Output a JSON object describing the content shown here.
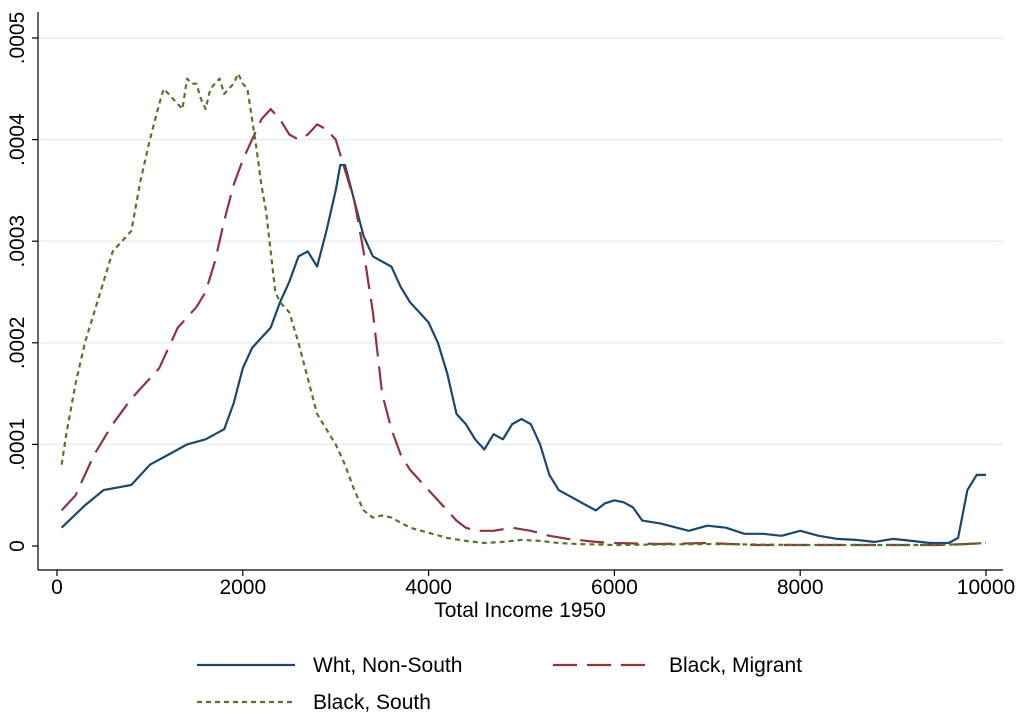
{
  "chart_data": {
    "type": "line",
    "xlabel": "Total Income 1950",
    "ylabel": "",
    "xlim": [
      0,
      10000
    ],
    "ylim": [
      0,
      0.0005
    ],
    "x_ticks": [
      0,
      2000,
      4000,
      6000,
      8000,
      10000
    ],
    "x_tick_labels": [
      "0",
      "2000",
      "4000",
      "6000",
      "8000",
      "10000"
    ],
    "y_ticks": [
      0,
      0.0001,
      0.0002,
      0.0003,
      0.0004,
      0.0005
    ],
    "y_tick_labels": [
      "0",
      ".0001",
      ".0002",
      ".0003",
      ".0004",
      ".0005"
    ],
    "grid": "horizontal",
    "legend_position": "bottom",
    "series": [
      {
        "name": "Wht, Non-South",
        "color": "#1a476f",
        "dash": "solid",
        "points": [
          [
            50,
            1.8e-05
          ],
          [
            300,
            4e-05
          ],
          [
            500,
            5.5e-05
          ],
          [
            800,
            6e-05
          ],
          [
            1000,
            8e-05
          ],
          [
            1200,
            9e-05
          ],
          [
            1400,
            0.0001
          ],
          [
            1600,
            0.000105
          ],
          [
            1800,
            0.000115
          ],
          [
            1900,
            0.00014
          ],
          [
            2000,
            0.000175
          ],
          [
            2100,
            0.000195
          ],
          [
            2200,
            0.000205
          ],
          [
            2300,
            0.000215
          ],
          [
            2400,
            0.00024
          ],
          [
            2500,
            0.00026
          ],
          [
            2600,
            0.000285
          ],
          [
            2700,
            0.00029
          ],
          [
            2800,
            0.000275
          ],
          [
            2900,
            0.00031
          ],
          [
            3000,
            0.00035
          ],
          [
            3050,
            0.000375
          ],
          [
            3100,
            0.000375
          ],
          [
            3200,
            0.00034
          ],
          [
            3300,
            0.000305
          ],
          [
            3400,
            0.000285
          ],
          [
            3500,
            0.00028
          ],
          [
            3600,
            0.000275
          ],
          [
            3700,
            0.000255
          ],
          [
            3800,
            0.00024
          ],
          [
            3900,
            0.00023
          ],
          [
            4000,
            0.00022
          ],
          [
            4100,
            0.0002
          ],
          [
            4200,
            0.00017
          ],
          [
            4300,
            0.00013
          ],
          [
            4400,
            0.00012
          ],
          [
            4500,
            0.000105
          ],
          [
            4600,
            9.5e-05
          ],
          [
            4700,
            0.00011
          ],
          [
            4800,
            0.000105
          ],
          [
            4900,
            0.00012
          ],
          [
            5000,
            0.000125
          ],
          [
            5100,
            0.00012
          ],
          [
            5200,
            0.0001
          ],
          [
            5300,
            7e-05
          ],
          [
            5400,
            5.5e-05
          ],
          [
            5500,
            5e-05
          ],
          [
            5700,
            4e-05
          ],
          [
            5800,
            3.5e-05
          ],
          [
            5900,
            4.2e-05
          ],
          [
            6000,
            4.5e-05
          ],
          [
            6100,
            4.3e-05
          ],
          [
            6200,
            3.8e-05
          ],
          [
            6300,
            2.5e-05
          ],
          [
            6500,
            2.2e-05
          ],
          [
            6800,
            1.5e-05
          ],
          [
            7000,
            2e-05
          ],
          [
            7200,
            1.8e-05
          ],
          [
            7400,
            1.2e-05
          ],
          [
            7600,
            1.2e-05
          ],
          [
            7800,
            1e-05
          ],
          [
            8000,
            1.5e-05
          ],
          [
            8200,
            1e-05
          ],
          [
            8400,
            7e-06
          ],
          [
            8600,
            6e-06
          ],
          [
            8800,
            4e-06
          ],
          [
            9000,
            7e-06
          ],
          [
            9200,
            5e-06
          ],
          [
            9400,
            3e-06
          ],
          [
            9600,
            3e-06
          ],
          [
            9700,
            8e-06
          ],
          [
            9800,
            5.5e-05
          ],
          [
            9900,
            7e-05
          ],
          [
            10000,
            7e-05
          ]
        ]
      },
      {
        "name": "Black, Migrant",
        "color": "#90353b",
        "dash": "long-dash",
        "points": [
          [
            50,
            3.5e-05
          ],
          [
            200,
            5e-05
          ],
          [
            400,
            9e-05
          ],
          [
            600,
            0.00012
          ],
          [
            800,
            0.000145
          ],
          [
            1000,
            0.000165
          ],
          [
            1100,
            0.000175
          ],
          [
            1200,
            0.000195
          ],
          [
            1300,
            0.000215
          ],
          [
            1400,
            0.000225
          ],
          [
            1500,
            0.000235
          ],
          [
            1600,
            0.00025
          ],
          [
            1700,
            0.00028
          ],
          [
            1800,
            0.00032
          ],
          [
            1900,
            0.000355
          ],
          [
            2000,
            0.00038
          ],
          [
            2100,
            0.0004
          ],
          [
            2200,
            0.00042
          ],
          [
            2300,
            0.00043
          ],
          [
            2400,
            0.00042
          ],
          [
            2500,
            0.000405
          ],
          [
            2600,
            0.0004
          ],
          [
            2700,
            0.000405
          ],
          [
            2800,
            0.000415
          ],
          [
            2900,
            0.00041
          ],
          [
            3000,
            0.0004
          ],
          [
            3100,
            0.00037
          ],
          [
            3200,
            0.00034
          ],
          [
            3300,
            0.00029
          ],
          [
            3400,
            0.00023
          ],
          [
            3500,
            0.00015
          ],
          [
            3600,
            0.000115
          ],
          [
            3700,
            9e-05
          ],
          [
            3800,
            7.5e-05
          ],
          [
            3900,
            6.5e-05
          ],
          [
            4000,
            5.5e-05
          ],
          [
            4100,
            4.5e-05
          ],
          [
            4200,
            3.5e-05
          ],
          [
            4300,
            2.5e-05
          ],
          [
            4400,
            1.8e-05
          ],
          [
            4500,
            1.5e-05
          ],
          [
            4700,
            1.5e-05
          ],
          [
            4900,
            1.8e-05
          ],
          [
            5100,
            1.5e-05
          ],
          [
            5300,
            1e-05
          ],
          [
            5500,
            7e-06
          ],
          [
            5800,
            4e-06
          ],
          [
            6000,
            3e-06
          ],
          [
            6500,
            2e-06
          ],
          [
            7000,
            3e-06
          ],
          [
            7500,
            1e-06
          ],
          [
            8000,
            1e-06
          ],
          [
            9000,
            1e-06
          ],
          [
            9500,
            1e-06
          ],
          [
            9800,
            2e-06
          ],
          [
            10000,
            3e-06
          ]
        ]
      },
      {
        "name": "Black, South",
        "color": "#55752f",
        "dash": "short-dash",
        "points": [
          [
            50,
            8e-05
          ],
          [
            100,
            0.00011
          ],
          [
            200,
            0.00016
          ],
          [
            300,
            0.0002
          ],
          [
            400,
            0.00023
          ],
          [
            500,
            0.00026
          ],
          [
            600,
            0.00029
          ],
          [
            700,
            0.0003
          ],
          [
            800,
            0.00031
          ],
          [
            900,
            0.00036
          ],
          [
            1000,
            0.0004
          ],
          [
            1100,
            0.000435
          ],
          [
            1150,
            0.00045
          ],
          [
            1200,
            0.000445
          ],
          [
            1300,
            0.000435
          ],
          [
            1350,
            0.00043
          ],
          [
            1400,
            0.00046
          ],
          [
            1450,
            0.000455
          ],
          [
            1500,
            0.000455
          ],
          [
            1550,
            0.00044
          ],
          [
            1600,
            0.00043
          ],
          [
            1650,
            0.00045
          ],
          [
            1700,
            0.000455
          ],
          [
            1750,
            0.00046
          ],
          [
            1800,
            0.000445
          ],
          [
            1850,
            0.00045
          ],
          [
            1900,
            0.000455
          ],
          [
            1950,
            0.000465
          ],
          [
            2000,
            0.000455
          ],
          [
            2050,
            0.00045
          ],
          [
            2100,
            0.00042
          ],
          [
            2150,
            0.00039
          ],
          [
            2200,
            0.000355
          ],
          [
            2250,
            0.00033
          ],
          [
            2300,
            0.00029
          ],
          [
            2350,
            0.00025
          ],
          [
            2400,
            0.00024
          ],
          [
            2500,
            0.00023
          ],
          [
            2600,
            0.0002
          ],
          [
            2700,
            0.000165
          ],
          [
            2800,
            0.00013
          ],
          [
            2900,
            0.000115
          ],
          [
            3000,
            0.0001
          ],
          [
            3100,
            8e-05
          ],
          [
            3200,
            5.5e-05
          ],
          [
            3300,
            3.5e-05
          ],
          [
            3400,
            2.8e-05
          ],
          [
            3500,
            3e-05
          ],
          [
            3600,
            2.8e-05
          ],
          [
            3700,
            2.3e-05
          ],
          [
            3800,
            1.8e-05
          ],
          [
            4000,
            1.3e-05
          ],
          [
            4200,
            8e-06
          ],
          [
            4400,
            5e-06
          ],
          [
            4600,
            3e-06
          ],
          [
            4800,
            4e-06
          ],
          [
            5000,
            6e-06
          ],
          [
            5200,
            5e-06
          ],
          [
            5400,
            3e-06
          ],
          [
            5600,
            2e-06
          ],
          [
            6000,
            1e-06
          ],
          [
            7000,
            2e-06
          ],
          [
            8000,
            1e-06
          ],
          [
            9000,
            1e-06
          ],
          [
            9500,
            1e-06
          ],
          [
            9800,
            2e-06
          ],
          [
            10000,
            3e-06
          ]
        ]
      }
    ]
  }
}
